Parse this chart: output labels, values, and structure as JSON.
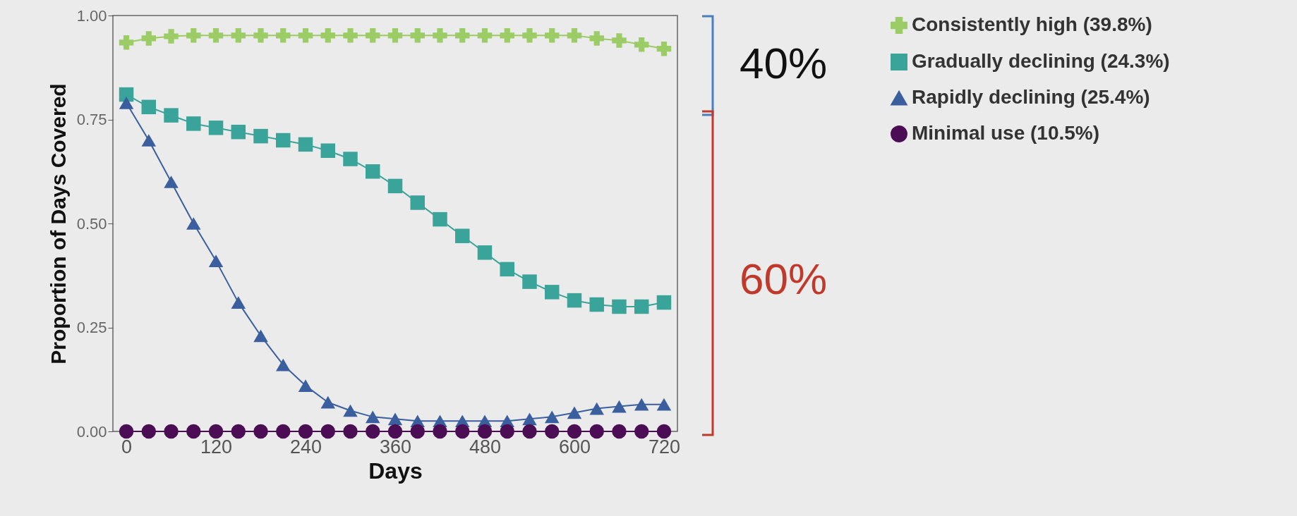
{
  "chart_data": {
    "type": "line",
    "xlabel": "Days",
    "ylabel": "Proportion of Days Covered",
    "x": [
      0,
      30,
      60,
      90,
      120,
      150,
      180,
      210,
      240,
      270,
      300,
      330,
      360,
      390,
      420,
      450,
      480,
      510,
      540,
      570,
      600,
      630,
      660,
      690,
      720
    ],
    "xlim": [
      -18,
      738
    ],
    "xticks": [
      0,
      120,
      240,
      360,
      480,
      600,
      720
    ],
    "ylim": [
      0,
      1
    ],
    "yticks": [
      {
        "value": 0,
        "label": "0.00"
      },
      {
        "value": 0.25,
        "label": "0.25"
      },
      {
        "value": 0.5,
        "label": "0.50"
      },
      {
        "value": 0.75,
        "label": "0.75"
      },
      {
        "value": 1,
        "label": "1.00"
      }
    ],
    "grid": false,
    "legend": "top right",
    "annotations": [
      "40%",
      "60%"
    ],
    "series": [
      {
        "name": "Consistently high (39.8%)",
        "color": "#9ccc65",
        "marker": "cross",
        "values": [
          0.935,
          0.945,
          0.95,
          0.952,
          0.952,
          0.952,
          0.952,
          0.952,
          0.952,
          0.952,
          0.952,
          0.952,
          0.952,
          0.952,
          0.952,
          0.952,
          0.952,
          0.952,
          0.952,
          0.952,
          0.952,
          0.945,
          0.94,
          0.93,
          0.92
        ]
      },
      {
        "name": "Gradually declining (24.3%)",
        "color": "#3aa39a",
        "marker": "square",
        "values": [
          0.81,
          0.78,
          0.76,
          0.74,
          0.73,
          0.72,
          0.71,
          0.7,
          0.69,
          0.675,
          0.655,
          0.625,
          0.59,
          0.55,
          0.51,
          0.47,
          0.43,
          0.39,
          0.36,
          0.335,
          0.315,
          0.305,
          0.3,
          0.3,
          0.31
        ]
      },
      {
        "name": "Rapidly declining (25.4%)",
        "color": "#3b5f9e",
        "marker": "triangle",
        "values": [
          0.79,
          0.7,
          0.6,
          0.5,
          0.41,
          0.31,
          0.23,
          0.16,
          0.11,
          0.07,
          0.05,
          0.035,
          0.03,
          0.025,
          0.025,
          0.025,
          0.025,
          0.025,
          0.03,
          0.035,
          0.045,
          0.055,
          0.06,
          0.065,
          0.065
        ]
      },
      {
        "name": "Minimal use (10.5%)",
        "color": "#4b0e55",
        "marker": "circle",
        "values": [
          0,
          0,
          0,
          0,
          0,
          0,
          0,
          0,
          0,
          0,
          0,
          0,
          0,
          0,
          0,
          0,
          0,
          0,
          0,
          0,
          0,
          0,
          0,
          0,
          0
        ]
      }
    ]
  }
}
